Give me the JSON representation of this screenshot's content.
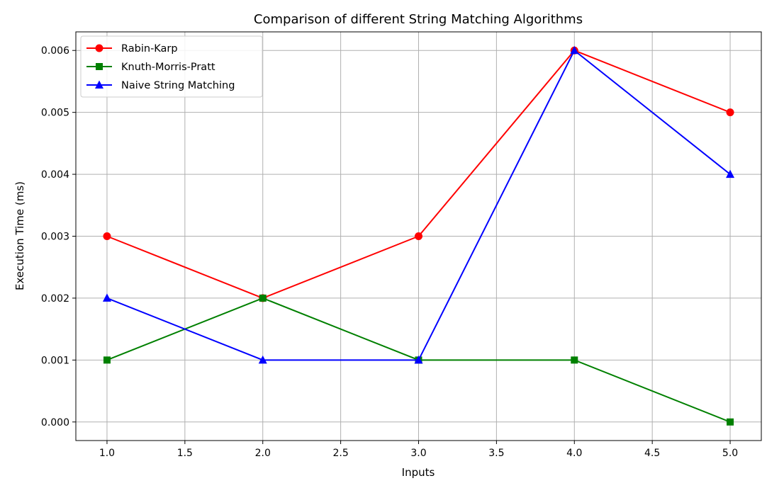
{
  "chart_data": {
    "type": "line",
    "title": "Comparison of different String Matching Algorithms",
    "xlabel": "Inputs",
    "ylabel": "Execution Time (ms)",
    "x": [
      1,
      2,
      3,
      4,
      5
    ],
    "xlim": [
      0.8,
      5.2
    ],
    "ylim": [
      -0.0003,
      0.0063
    ],
    "xticks": [
      1.0,
      1.5,
      2.0,
      2.5,
      3.0,
      3.5,
      4.0,
      4.5,
      5.0
    ],
    "xtick_labels": [
      "1.0",
      "1.5",
      "2.0",
      "2.5",
      "3.0",
      "3.5",
      "4.0",
      "4.5",
      "5.0"
    ],
    "yticks": [
      0.0,
      0.001,
      0.002,
      0.003,
      0.004,
      0.005,
      0.006
    ],
    "ytick_labels": [
      "0.000",
      "0.001",
      "0.002",
      "0.003",
      "0.004",
      "0.005",
      "0.006"
    ],
    "grid": true,
    "legend_position": "top-left",
    "series": [
      {
        "name": "Rabin-Karp",
        "values": [
          0.003,
          0.002,
          0.003,
          0.006,
          0.005
        ],
        "color": "#ff0000",
        "marker": "circle"
      },
      {
        "name": "Knuth-Morris-Pratt",
        "values": [
          0.001,
          0.002,
          0.001,
          0.001,
          0.0
        ],
        "color": "#008000",
        "marker": "square"
      },
      {
        "name": "Naive String Matching",
        "values": [
          0.002,
          0.001,
          0.001,
          0.006,
          0.004
        ],
        "color": "#0000ff",
        "marker": "triangle"
      }
    ]
  }
}
